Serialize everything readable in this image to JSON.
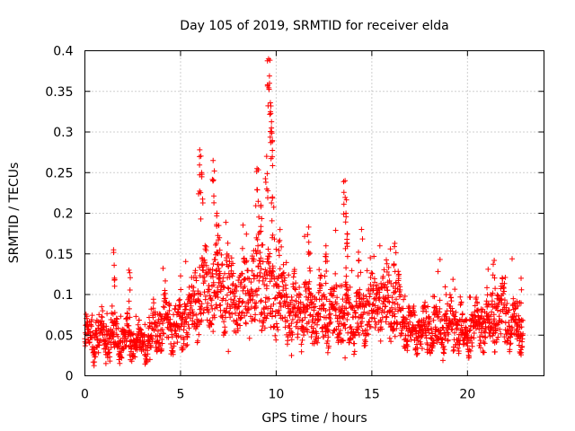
{
  "chart_data": {
    "type": "scatter",
    "title": "Day 105 of 2019, SRMTID for receiver elda",
    "xlabel": "GPS time / hours",
    "ylabel": "SRMTID / TECUs",
    "xlim": [
      0,
      24
    ],
    "ylim": [
      0,
      0.4
    ],
    "x_ticks": [
      0,
      5,
      10,
      15,
      20
    ],
    "x_tick_labels": [
      "0",
      "5",
      "10",
      "15",
      "20"
    ],
    "y_ticks": [
      0,
      0.05,
      0.1,
      0.15,
      0.2,
      0.25,
      0.3,
      0.35,
      0.4
    ],
    "y_tick_labels": [
      "0",
      "0.05",
      "0.1",
      "0.15",
      "0.2",
      "0.25",
      "0.3",
      "0.35",
      "0.4"
    ],
    "grid": true,
    "marker": "+",
    "series_color": "#ff0000",
    "x_data_range": [
      0,
      22.9
    ],
    "baseline_profile": [
      [
        0,
        0.045
      ],
      [
        1,
        0.05
      ],
      [
        2,
        0.045
      ],
      [
        3,
        0.04
      ],
      [
        4,
        0.065
      ],
      [
        5,
        0.06
      ],
      [
        6,
        0.1
      ],
      [
        7,
        0.11
      ],
      [
        8,
        0.095
      ],
      [
        9,
        0.11
      ],
      [
        10,
        0.095
      ],
      [
        11,
        0.08
      ],
      [
        12,
        0.075
      ],
      [
        13,
        0.075
      ],
      [
        14,
        0.07
      ],
      [
        15,
        0.085
      ],
      [
        16,
        0.095
      ],
      [
        17,
        0.055
      ],
      [
        18,
        0.055
      ],
      [
        19,
        0.065
      ],
      [
        20,
        0.05
      ],
      [
        21,
        0.07
      ],
      [
        22,
        0.075
      ],
      [
        22.9,
        0.055
      ]
    ],
    "peaks": [
      {
        "x": 1.5,
        "y": 0.155
      },
      {
        "x": 2.3,
        "y": 0.13
      },
      {
        "x": 6.0,
        "y": 0.278
      },
      {
        "x": 6.1,
        "y": 0.25
      },
      {
        "x": 6.7,
        "y": 0.265
      },
      {
        "x": 6.9,
        "y": 0.2
      },
      {
        "x": 7.0,
        "y": 0.185
      },
      {
        "x": 9.0,
        "y": 0.255
      },
      {
        "x": 9.2,
        "y": 0.21
      },
      {
        "x": 9.5,
        "y": 0.27
      },
      {
        "x": 9.6,
        "y": 0.39
      },
      {
        "x": 9.65,
        "y": 0.36
      },
      {
        "x": 9.7,
        "y": 0.325
      },
      {
        "x": 9.75,
        "y": 0.305
      },
      {
        "x": 9.8,
        "y": 0.22
      },
      {
        "x": 10.2,
        "y": 0.18
      },
      {
        "x": 11.7,
        "y": 0.183
      },
      {
        "x": 12.6,
        "y": 0.16
      },
      {
        "x": 13.6,
        "y": 0.24
      },
      {
        "x": 13.65,
        "y": 0.2
      },
      {
        "x": 13.7,
        "y": 0.168
      },
      {
        "x": 14.3,
        "y": 0.152
      },
      {
        "x": 16.2,
        "y": 0.163
      },
      {
        "x": 21.4,
        "y": 0.142
      },
      {
        "x": 22.8,
        "y": 0.12
      }
    ],
    "lows": [
      {
        "x": 0.5,
        "y": 0.017
      },
      {
        "x": 1.1,
        "y": 0.015
      },
      {
        "x": 3.4,
        "y": 0.02
      },
      {
        "x": 7.5,
        "y": 0.03
      },
      {
        "x": 10.8,
        "y": 0.025
      },
      {
        "x": 13.6,
        "y": 0.022
      }
    ]
  }
}
